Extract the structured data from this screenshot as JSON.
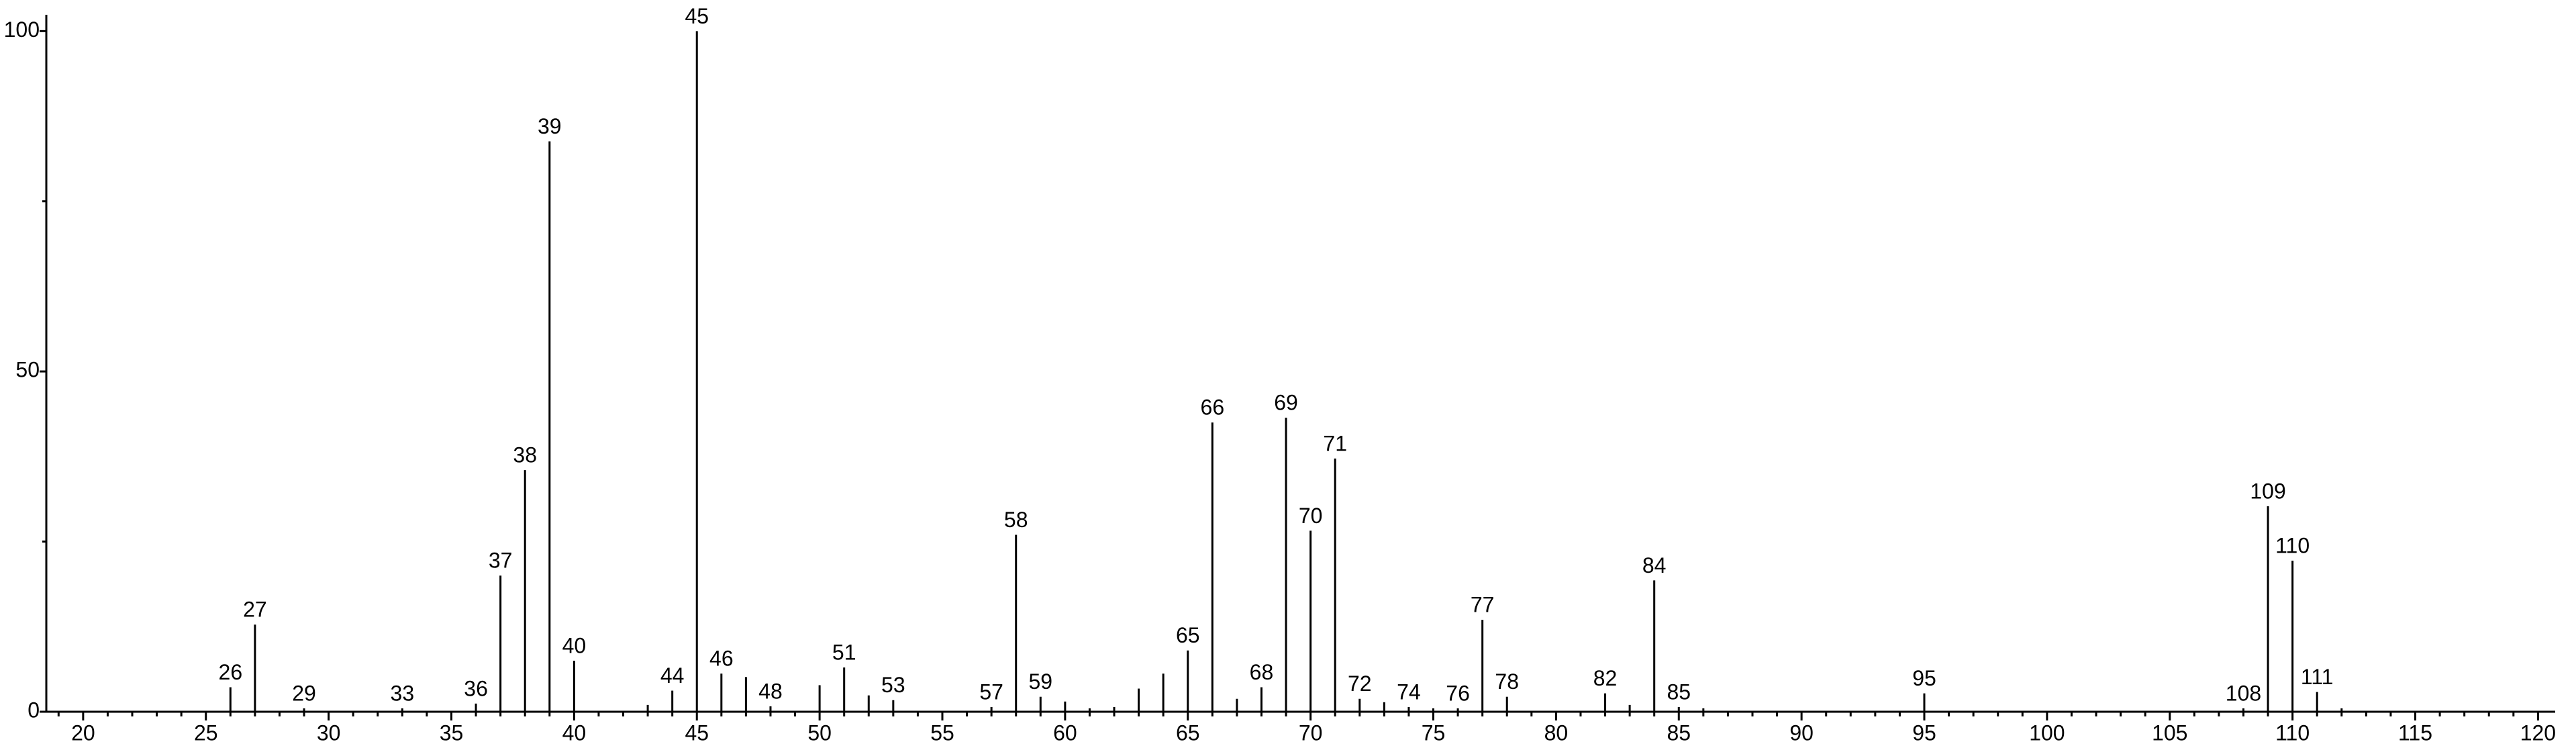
{
  "chart_data": {
    "type": "stem",
    "x": [
      26,
      27,
      29,
      33,
      36,
      37,
      38,
      39,
      40,
      43,
      44,
      45,
      46,
      47,
      48,
      50,
      51,
      52,
      53,
      57,
      58,
      59,
      60,
      61,
      62,
      63,
      64,
      65,
      66,
      67,
      68,
      69,
      70,
      71,
      72,
      73,
      74,
      75,
      76,
      77,
      78,
      82,
      83,
      84,
      85,
      86,
      95,
      108,
      109,
      110,
      111,
      112
    ],
    "values": [
      3.6,
      12.8,
      0.5,
      0.5,
      1.2,
      20,
      35.5,
      83.8,
      7.5,
      1,
      3.1,
      100,
      5.6,
      5.1,
      0.8,
      3.9,
      6.5,
      2.4,
      1.7,
      0.7,
      26,
      2.2,
      1.5,
      0.5,
      0.7,
      3.4,
      5.6,
      9,
      42.5,
      1.9,
      3.6,
      43.2,
      26.6,
      37.2,
      1.9,
      1.4,
      0.7,
      0.5,
      0.5,
      13.5,
      2.2,
      2.7,
      1,
      19.3,
      0.7,
      0.5,
      2.7,
      0.5,
      30.2,
      22.2,
      2.9,
      0.5
    ],
    "peak_labels": [
      "26",
      "27",
      "29",
      "33",
      "36",
      "37",
      "38",
      "39",
      "40",
      null,
      "44",
      "45",
      "46",
      null,
      "48",
      null,
      "51",
      null,
      "53",
      "57",
      "58",
      "59",
      null,
      null,
      null,
      null,
      null,
      "65",
      "66",
      null,
      "68",
      "69",
      "70",
      "71",
      "72",
      null,
      "74",
      null,
      "76",
      "77",
      "78",
      "82",
      null,
      "84",
      "85",
      null,
      "95",
      "108",
      "109",
      "110",
      "111",
      null
    ],
    "color": "#000000",
    "xlim": [
      18.5,
      120.7
    ],
    "ylim": [
      0,
      102.4
    ],
    "xticks": [
      20,
      25,
      30,
      35,
      40,
      45,
      50,
      55,
      60,
      65,
      70,
      75,
      80,
      85,
      90,
      95,
      100,
      105,
      110,
      115,
      120
    ],
    "xminorticks": [
      19,
      21,
      22,
      23,
      24,
      26,
      27,
      28,
      29,
      31,
      32,
      33,
      34,
      36,
      37,
      38,
      39,
      41,
      42,
      43,
      44,
      46,
      47,
      48,
      49,
      51,
      52,
      53,
      54,
      56,
      57,
      58,
      59,
      61,
      62,
      63,
      64,
      66,
      67,
      68,
      69,
      71,
      72,
      73,
      74,
      76,
      77,
      78,
      79,
      81,
      82,
      83,
      84,
      86,
      87,
      88,
      89,
      91,
      92,
      93,
      94,
      96,
      97,
      98,
      99,
      101,
      102,
      103,
      104,
      106,
      107,
      108,
      109,
      111,
      112,
      113,
      114,
      116,
      117,
      118,
      119
    ],
    "yticks": [
      0,
      50,
      100
    ],
    "yminorticks": [
      25,
      75
    ]
  }
}
